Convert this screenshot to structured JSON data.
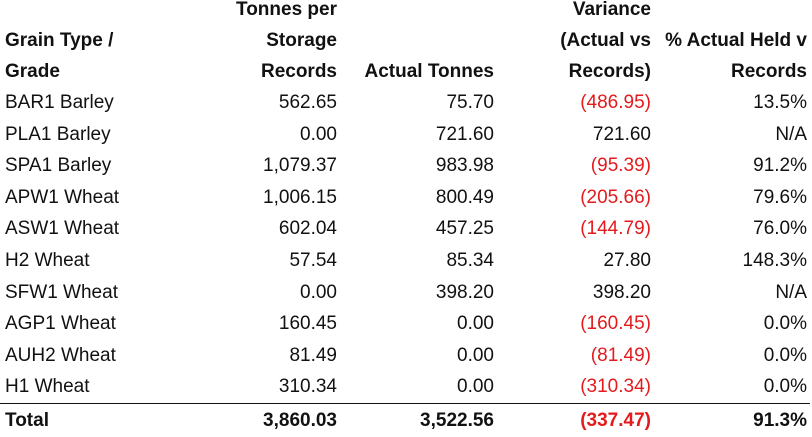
{
  "headers": {
    "grain": [
      "Grain Type /",
      "Grade"
    ],
    "records": [
      "Tonnes per",
      "Storage",
      "Records"
    ],
    "actual": [
      "Actual Tonnes"
    ],
    "variance": [
      "Variance",
      "(Actual vs",
      "Records)"
    ],
    "percent": [
      "% Actual Held v",
      "Records"
    ]
  },
  "rows": [
    {
      "grain": "BAR1 Barley",
      "records": "562.65",
      "actual": "75.70",
      "variance": "(486.95)",
      "percent": "13.5%",
      "negative": true
    },
    {
      "grain": "PLA1 Barley",
      "records": "0.00",
      "actual": "721.60",
      "variance": "721.60",
      "percent": "N/A",
      "negative": false
    },
    {
      "grain": "SPA1 Barley",
      "records": "1,079.37",
      "actual": "983.98",
      "variance": "(95.39)",
      "percent": "91.2%",
      "negative": true
    },
    {
      "grain": "APW1 Wheat",
      "records": "1,006.15",
      "actual": "800.49",
      "variance": "(205.66)",
      "percent": "79.6%",
      "negative": true
    },
    {
      "grain": "ASW1 Wheat",
      "records": "602.04",
      "actual": "457.25",
      "variance": "(144.79)",
      "percent": "76.0%",
      "negative": true
    },
    {
      "grain": "H2 Wheat",
      "records": "57.54",
      "actual": "85.34",
      "variance": "27.80",
      "percent": "148.3%",
      "negative": false
    },
    {
      "grain": "SFW1 Wheat",
      "records": "0.00",
      "actual": "398.20",
      "variance": "398.20",
      "percent": "N/A",
      "negative": false
    },
    {
      "grain": "AGP1 Wheat",
      "records": "160.45",
      "actual": "0.00",
      "variance": "(160.45)",
      "percent": "0.0%",
      "negative": true
    },
    {
      "grain": "AUH2 Wheat",
      "records": "81.49",
      "actual": "0.00",
      "variance": "(81.49)",
      "percent": "0.0%",
      "negative": true
    },
    {
      "grain": "H1 Wheat",
      "records": "310.34",
      "actual": "0.00",
      "variance": "(310.34)",
      "percent": "0.0%",
      "negative": true
    }
  ],
  "total": {
    "label": "Total",
    "records": "3,860.03",
    "actual": "3,522.56",
    "variance": "(337.47)",
    "percent": "91.3%",
    "negative": true
  },
  "colors": {
    "negative": "#e41a1c",
    "text": "#111111"
  }
}
